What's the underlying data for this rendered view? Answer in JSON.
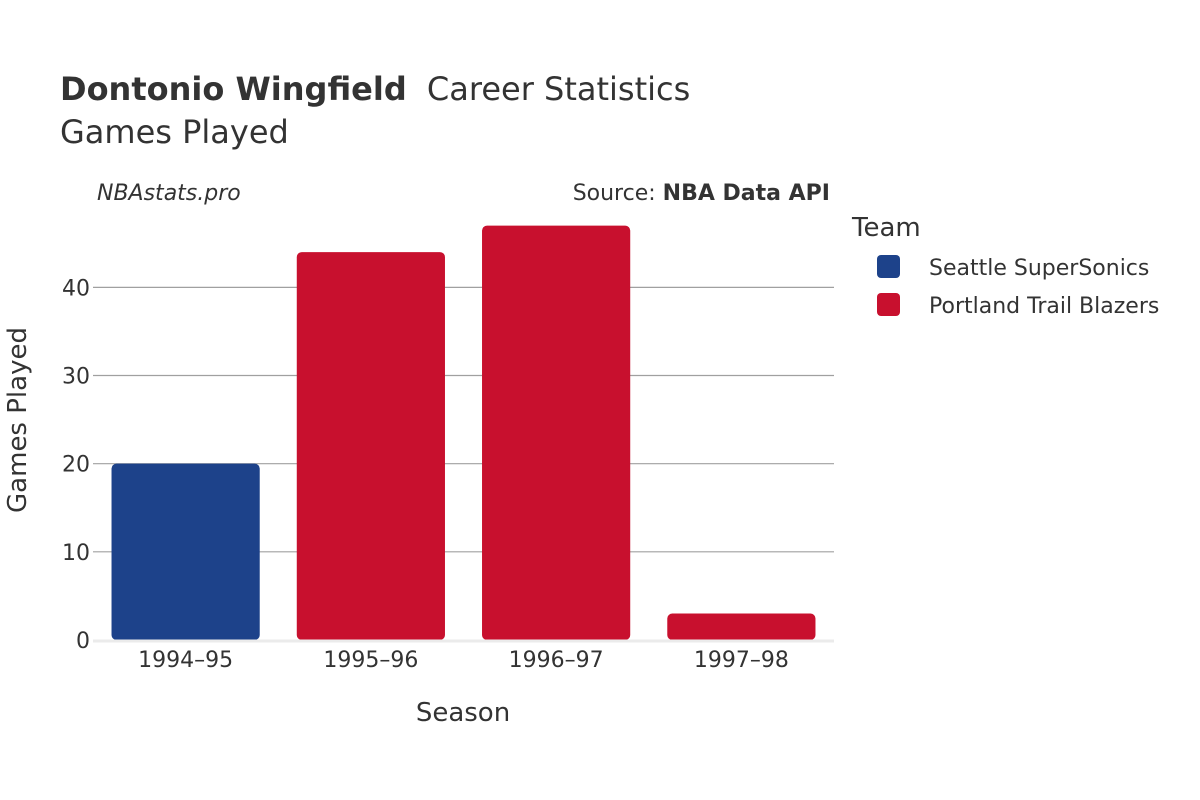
{
  "title": {
    "player": "Dontonio Wingfield",
    "rest": "Career Statistics",
    "subtitle": "Games Played"
  },
  "watermark": "NBAstats.pro",
  "source": {
    "label": "Source: ",
    "name": "NBA Data API"
  },
  "legend": {
    "title": "Team",
    "items": [
      {
        "name": "Seattle SuperSonics",
        "color": "#1d428a"
      },
      {
        "name": "Portland Trail Blazers",
        "color": "#c8102e"
      }
    ]
  },
  "chart_data": {
    "type": "bar",
    "title": "Dontonio Wingfield Career Statistics",
    "subtitle": "Games Played",
    "xlabel": "Season",
    "ylabel": "Games Played",
    "ylim": [
      0,
      49
    ],
    "yticks": [
      0,
      10,
      20,
      30,
      40
    ],
    "categories": [
      "1994–95",
      "1995–96",
      "1996–97",
      "1997–98"
    ],
    "series": [
      {
        "name": "Seattle SuperSonics",
        "color": "#1d428a",
        "values": [
          20,
          null,
          null,
          null
        ]
      },
      {
        "name": "Portland Trail Blazers",
        "color": "#c8102e",
        "values": [
          null,
          44,
          47,
          3
        ]
      }
    ],
    "grid": true,
    "legend_position": "right"
  }
}
